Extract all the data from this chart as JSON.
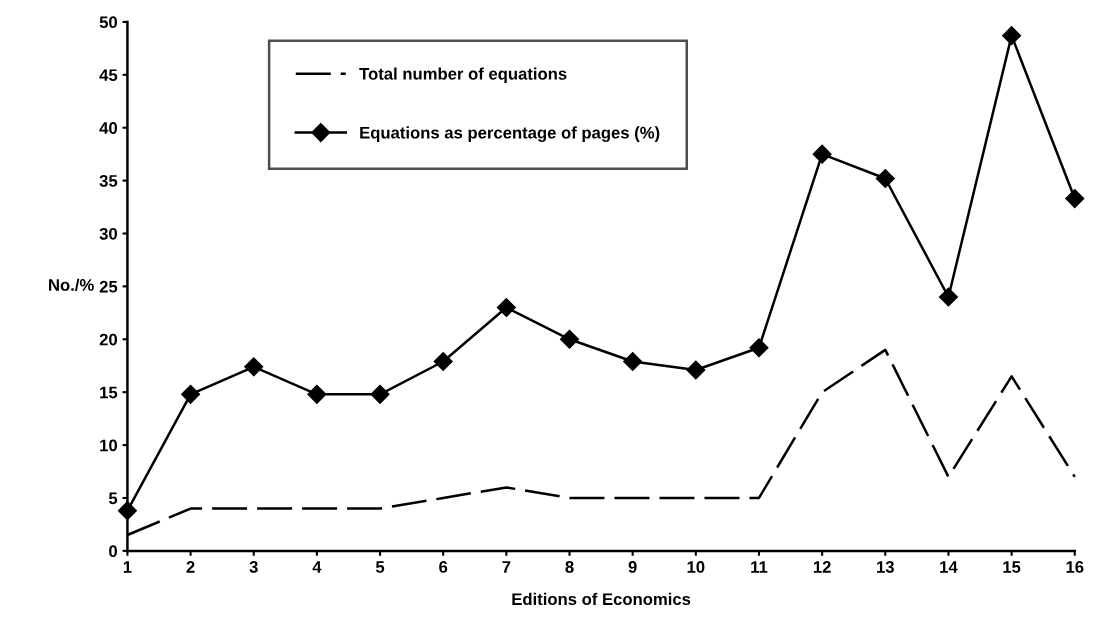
{
  "chart_data": {
    "type": "line",
    "xlabel": "Editions of Economics",
    "ylabel": "No./%",
    "categories": [
      "1",
      "2",
      "3",
      "4",
      "5",
      "6",
      "7",
      "8",
      "9",
      "10",
      "11",
      "12",
      "13",
      "14",
      "15",
      "16"
    ],
    "series": [
      {
        "name": "Total number of equations",
        "color": "#000000",
        "line_style": "dashed",
        "marker": "none",
        "values": [
          1.5,
          4,
          4,
          4,
          4,
          5,
          6,
          5,
          5,
          5,
          5,
          15,
          19,
          7,
          16.5,
          7
        ]
      },
      {
        "name": "Equations as percentage of pages (%)",
        "color": "#000000",
        "line_style": "solid",
        "marker": "diamond",
        "values": [
          3.8,
          14.8,
          17.4,
          14.8,
          14.8,
          17.9,
          23,
          20,
          17.9,
          17.1,
          19.2,
          37.5,
          35.2,
          24,
          48.7,
          33.3
        ]
      }
    ],
    "ylim": [
      0,
      50
    ],
    "yticks": [
      0,
      5,
      10,
      15,
      20,
      25,
      30,
      35,
      40,
      45,
      50
    ],
    "grid": false,
    "legend": "top"
  }
}
